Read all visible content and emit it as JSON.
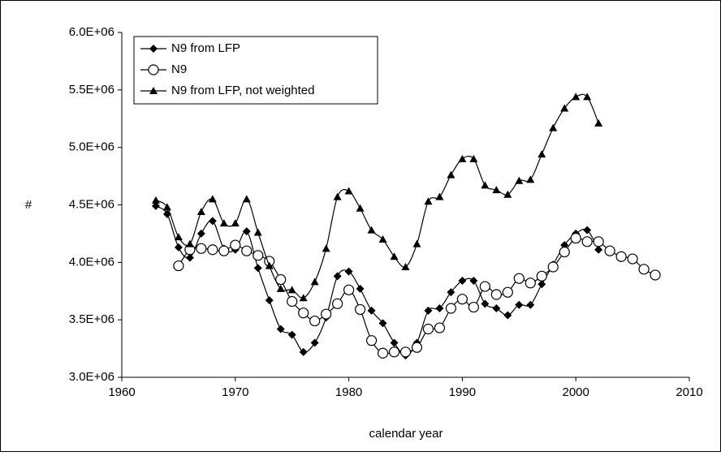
{
  "chart_data": {
    "type": "line",
    "xlabel": "calendar year",
    "ylabel": "#",
    "xlim": [
      1960,
      2010
    ],
    "xticks": [
      1960,
      1970,
      1980,
      1990,
      2000,
      2010
    ],
    "ylim": [
      3000000,
      6000000
    ],
    "yticks": [
      {
        "value": 3000000,
        "label": "3.0E+06"
      },
      {
        "value": 3500000,
        "label": "3.5E+06"
      },
      {
        "value": 4000000,
        "label": "4.0E+06"
      },
      {
        "value": 4500000,
        "label": "4.5E+06"
      },
      {
        "value": 5000000,
        "label": "5.0E+06"
      },
      {
        "value": 5500000,
        "label": "5.5E+06"
      },
      {
        "value": 6000000,
        "label": "6.0E+06"
      }
    ],
    "grid": false,
    "legend": "upper left",
    "series": [
      {
        "name": "N9 from LFP",
        "color": "#000000",
        "marker": "diamond",
        "x": [
          1963,
          1964,
          1965,
          1966,
          1967,
          1968,
          1969,
          1970,
          1971,
          1972,
          1973,
          1974,
          1975,
          1976,
          1977,
          1978,
          1979,
          1980,
          1981,
          1982,
          1983,
          1984,
          1985,
          1986,
          1987,
          1988,
          1989,
          1990,
          1991,
          1992,
          1993,
          1994,
          1995,
          1996,
          1997,
          1998,
          1999,
          2000,
          2001,
          2002
        ],
        "values": [
          4490000,
          4420000,
          4130000,
          4040000,
          4250000,
          4360000,
          4120000,
          4110000,
          4270000,
          3950000,
          3670000,
          3420000,
          3370000,
          3220000,
          3300000,
          3520000,
          3880000,
          3920000,
          3770000,
          3580000,
          3470000,
          3300000,
          3190000,
          3300000,
          3580000,
          3600000,
          3740000,
          3840000,
          3840000,
          3640000,
          3600000,
          3540000,
          3630000,
          3630000,
          3810000,
          3980000,
          4150000,
          4250000,
          4280000,
          4110000
        ]
      },
      {
        "name": "N9",
        "color": "#000000",
        "marker": "circle",
        "x": [
          1965,
          1966,
          1967,
          1968,
          1969,
          1970,
          1971,
          1972,
          1973,
          1974,
          1975,
          1976,
          1977,
          1978,
          1979,
          1980,
          1981,
          1982,
          1983,
          1984,
          1985,
          1986,
          1987,
          1988,
          1989,
          1990,
          1991,
          1992,
          1993,
          1994,
          1995,
          1996,
          1997,
          1998,
          1999,
          2000,
          2001,
          2002,
          2003,
          2004,
          2005,
          2006,
          2007
        ],
        "values": [
          3970000,
          4110000,
          4120000,
          4110000,
          4100000,
          4150000,
          4100000,
          4060000,
          4010000,
          3850000,
          3660000,
          3560000,
          3490000,
          3550000,
          3640000,
          3760000,
          3590000,
          3320000,
          3210000,
          3220000,
          3220000,
          3260000,
          3420000,
          3430000,
          3600000,
          3680000,
          3610000,
          3790000,
          3720000,
          3740000,
          3860000,
          3820000,
          3880000,
          3960000,
          4090000,
          4210000,
          4180000,
          4180000,
          4100000,
          4050000,
          4030000,
          3940000,
          3890000
        ]
      },
      {
        "name": "N9 from LFP, not weighted",
        "color": "#000000",
        "marker": "triangle",
        "x": [
          1963,
          1964,
          1965,
          1966,
          1967,
          1968,
          1969,
          1970,
          1971,
          1972,
          1973,
          1974,
          1975,
          1976,
          1977,
          1978,
          1979,
          1980,
          1981,
          1982,
          1983,
          1984,
          1985,
          1986,
          1987,
          1988,
          1989,
          1990,
          1991,
          1992,
          1993,
          1994,
          1995,
          1996,
          1997,
          1998,
          1999,
          2000,
          2001,
          2002
        ],
        "values": [
          4540000,
          4480000,
          4220000,
          4160000,
          4440000,
          4550000,
          4340000,
          4340000,
          4550000,
          4260000,
          3970000,
          3770000,
          3760000,
          3690000,
          3830000,
          4120000,
          4570000,
          4620000,
          4470000,
          4280000,
          4200000,
          4050000,
          3960000,
          4160000,
          4530000,
          4570000,
          4760000,
          4900000,
          4900000,
          4670000,
          4630000,
          4590000,
          4710000,
          4720000,
          4940000,
          5170000,
          5340000,
          5440000,
          5440000,
          5210000
        ]
      }
    ]
  }
}
